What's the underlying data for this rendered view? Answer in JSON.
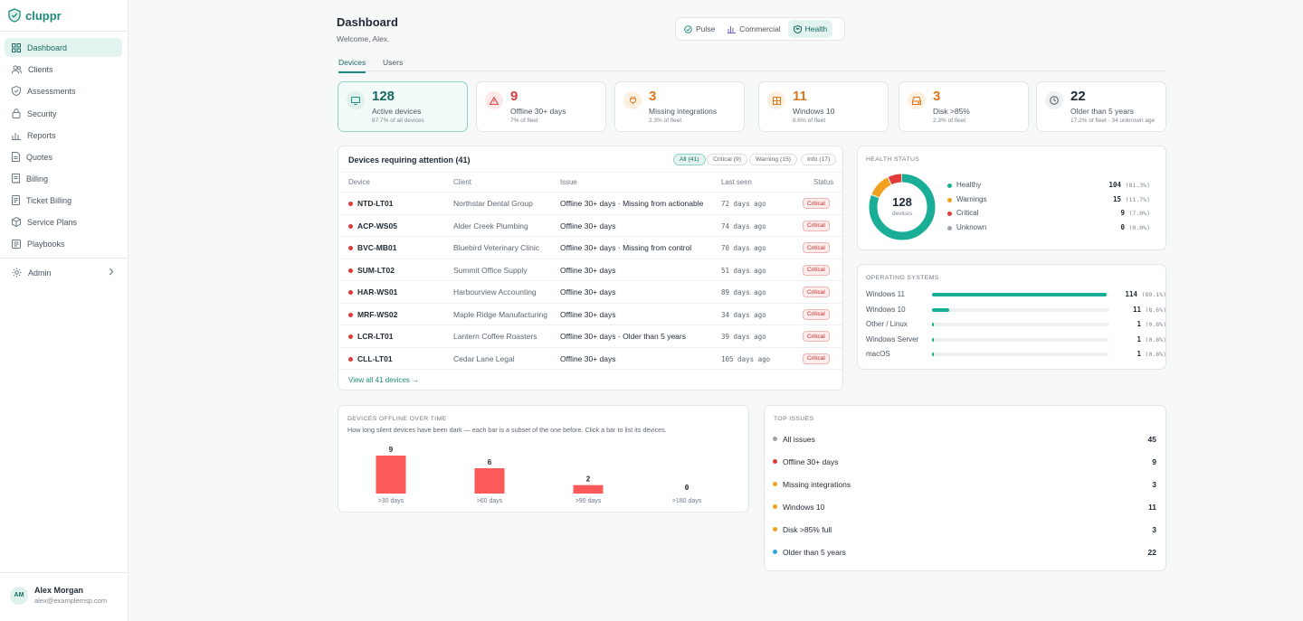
{
  "brand": {
    "name": "cluppr"
  },
  "sidebar": {
    "items": [
      {
        "label": "Dashboard",
        "icon": "grid-icon"
      },
      {
        "label": "Clients",
        "icon": "users-icon"
      },
      {
        "label": "Assessments",
        "icon": "shield-check-icon"
      },
      {
        "label": "Security",
        "icon": "lock-icon"
      },
      {
        "label": "Reports",
        "icon": "bar-chart-icon"
      },
      {
        "label": "Quotes",
        "icon": "document-icon"
      },
      {
        "label": "Billing",
        "icon": "receipt-icon"
      },
      {
        "label": "Ticket Billing",
        "icon": "ticket-icon"
      },
      {
        "label": "Service Plans",
        "icon": "box-icon"
      },
      {
        "label": "Playbooks",
        "icon": "book-icon"
      }
    ],
    "admin": {
      "label": "Admin",
      "icon": "gear-icon"
    }
  },
  "user": {
    "initials": "AM",
    "name": "Alex Morgan",
    "email": "alex@examplemsp.com"
  },
  "header": {
    "title": "Dashboard",
    "subtitle": "Welcome, Alex."
  },
  "view_switch": [
    {
      "label": "Pulse",
      "icon": "pulse-icon"
    },
    {
      "label": "Commercial",
      "icon": "bar-chart-icon"
    },
    {
      "label": "Health",
      "icon": "heart-shield-icon"
    }
  ],
  "tabs": [
    "Devices",
    "Users"
  ],
  "kpis": [
    {
      "value": "128",
      "label": "Active devices",
      "sub": "87.7% of all devices",
      "color": "#17695f",
      "icon": "monitor-icon"
    },
    {
      "value": "9",
      "label": "Offline 30+ days",
      "sub": "7% of fleet",
      "color": "#d63a3a",
      "icon": "warning-icon"
    },
    {
      "value": "3",
      "label": "Missing integrations",
      "sub": "2.3% of fleet",
      "color": "#d9771f",
      "icon": "plug-icon"
    },
    {
      "value": "11",
      "label": "Windows 10",
      "sub": "8.6% of fleet",
      "color": "#d9771f",
      "icon": "windows-icon"
    },
    {
      "value": "3",
      "label": "Disk >85%",
      "sub": "2.3% of fleet",
      "color": "#d9771f",
      "icon": "disk-icon"
    },
    {
      "value": "22",
      "label": "Older than 5 years",
      "sub": "17.2% of fleet · 34 unknown age",
      "color": "#1f2933",
      "icon": "clock-icon"
    }
  ],
  "attention": {
    "title": "Devices requiring attention (41)",
    "filters": [
      "All (41)",
      "Critical (9)",
      "Warning (15)",
      "Info (17)"
    ],
    "columns": [
      "Device",
      "Client",
      "Issue",
      "Last seen",
      "Status"
    ],
    "rows": [
      {
        "device": "NTD-LT01",
        "client": "Northstar Dental Group",
        "issue": "Offline 30+ days · Missing from actionable",
        "seen": "72 days ago",
        "status": "Critical"
      },
      {
        "device": "ACP-WS05",
        "client": "Alder Creek Plumbing",
        "issue": "Offline 30+ days",
        "seen": "74 days ago",
        "status": "Critical"
      },
      {
        "device": "BVC-MB01",
        "client": "Bluebird Veterinary Clinic",
        "issue": "Offline 30+ days · Missing from control",
        "seen": "70 days ago",
        "status": "Critical"
      },
      {
        "device": "SUM-LT02",
        "client": "Summit Office Supply",
        "issue": "Offline 30+ days",
        "seen": "51 days ago",
        "status": "Critical"
      },
      {
        "device": "HAR-WS01",
        "client": "Harbourview Accounting",
        "issue": "Offline 30+ days",
        "seen": "89 days ago",
        "status": "Critical"
      },
      {
        "device": "MRF-WS02",
        "client": "Maple Ridge Manufacturing",
        "issue": "Offline 30+ days",
        "seen": "34 days ago",
        "status": "Critical"
      },
      {
        "device": "LCR-LT01",
        "client": "Lantern Coffee Roasters",
        "issue": "Offline 30+ days · Older than 5 years",
        "seen": "39 days ago",
        "status": "Critical"
      },
      {
        "device": "CLL-LT01",
        "client": "Cedar Lane Legal",
        "issue": "Offline 30+ days",
        "seen": "105 days ago",
        "status": "Critical"
      }
    ],
    "view_all": "View all 41 devices →"
  },
  "health": {
    "title": "Health status",
    "center_value": "128",
    "center_label": "devices",
    "items": [
      {
        "label": "Healthy",
        "count": "104",
        "pct": "(81.3%)",
        "value": 104,
        "color": "#1aae97"
      },
      {
        "label": "Warnings",
        "count": "15",
        "pct": "(11.7%)",
        "value": 15,
        "color": "#f0a21f"
      },
      {
        "label": "Critical",
        "count": "9",
        "pct": "(7.0%)",
        "value": 9,
        "color": "#e23b3b"
      },
      {
        "label": "Unknown",
        "count": "0",
        "pct": "(0.0%)",
        "value": 0,
        "color": "#9aa4ad"
      }
    ]
  },
  "os": {
    "title": "Operating systems",
    "items": [
      {
        "name": "Windows 11",
        "count": "114",
        "pct": "(89.1%)",
        "share": 0.891
      },
      {
        "name": "Windows 10",
        "count": "11",
        "pct": "(8.6%)",
        "share": 0.086
      },
      {
        "name": "Other / Linux",
        "count": "1",
        "pct": "(0.8%)",
        "share": 0.008
      },
      {
        "name": "Windows Server",
        "count": "1",
        "pct": "(0.8%)",
        "share": 0.008
      },
      {
        "name": "macOS",
        "count": "1",
        "pct": "(0.8%)",
        "share": 0.008
      }
    ]
  },
  "offline_chart": {
    "title": "Devices offline over time",
    "subtitle": "How long silent devices have been dark — each bar is a subset of the one before. Click a bar to list its devices.",
    "bar_color": "#fb5a5a"
  },
  "chart_data": {
    "type": "bar",
    "categories": [
      ">30 days",
      ">60 days",
      ">90 days",
      ">180 days"
    ],
    "values": [
      9,
      6,
      2,
      0
    ],
    "title": "Devices offline over time",
    "xlabel": "",
    "ylabel": "",
    "ylim": [
      0,
      9
    ]
  },
  "top_issues": {
    "title": "Top issues",
    "items": [
      {
        "label": "All issues",
        "count": "45",
        "color": "#9aa4ad"
      },
      {
        "label": "Offline 30+ days",
        "count": "9",
        "color": "#e23b3b"
      },
      {
        "label": "Missing integrations",
        "count": "3",
        "color": "#f0a21f"
      },
      {
        "label": "Windows 10",
        "count": "11",
        "color": "#f0a21f"
      },
      {
        "label": "Disk >85% full",
        "count": "3",
        "color": "#f0a21f"
      },
      {
        "label": "Older than 5 years",
        "count": "22",
        "color": "#2ba6e0"
      }
    ]
  }
}
